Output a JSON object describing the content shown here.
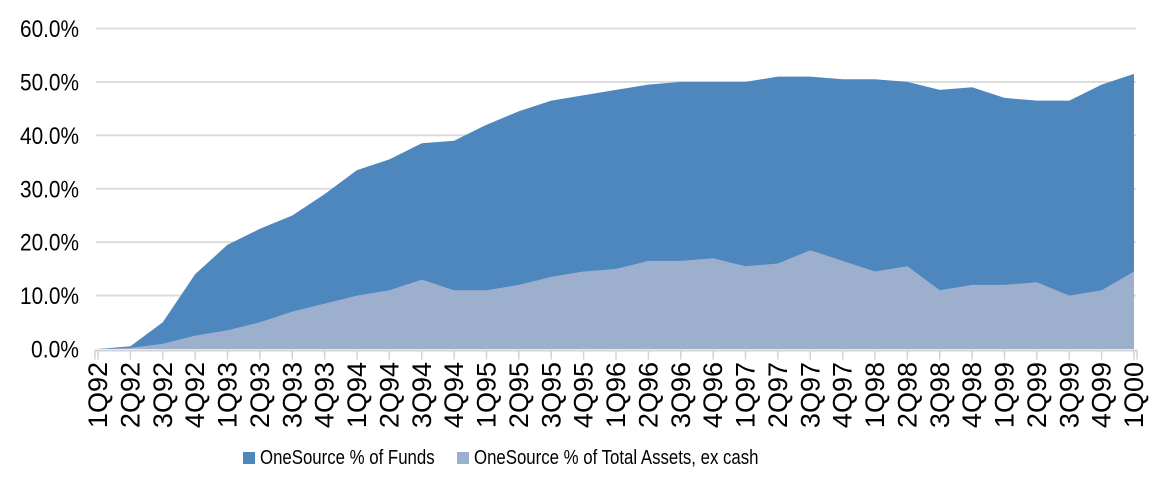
{
  "chart_data": {
    "type": "area",
    "title": "",
    "categories": [
      "1Q92",
      "2Q92",
      "3Q92",
      "4Q92",
      "1Q93",
      "2Q93",
      "3Q93",
      "4Q93",
      "1Q94",
      "2Q94",
      "3Q94",
      "4Q94",
      "1Q95",
      "2Q95",
      "3Q95",
      "4Q95",
      "1Q96",
      "2Q96",
      "3Q96",
      "4Q96",
      "1Q97",
      "2Q97",
      "3Q97",
      "4Q97",
      "1Q98",
      "2Q98",
      "3Q98",
      "4Q98",
      "1Q99",
      "2Q99",
      "3Q99",
      "4Q99",
      "1Q00"
    ],
    "series": [
      {
        "name": "OneSource % of Funds",
        "color": "#4E86BE",
        "values": [
          0,
          0.5,
          5,
          14,
          19.5,
          22.5,
          25,
          29,
          33.5,
          35.5,
          38.5,
          39,
          42,
          44.5,
          46.5,
          47.5,
          48.5,
          49.5,
          50,
          50,
          50,
          51,
          51,
          50.5,
          50.5,
          50,
          48.5,
          49,
          47,
          46.5,
          46.5,
          49.5,
          51.5
        ]
      },
      {
        "name": "OneSource % of Total Assets, ex cash",
        "color": "#9CB0CD",
        "values": [
          0,
          0.2,
          1,
          2.5,
          3.5,
          5,
          7,
          8.5,
          10,
          11,
          13,
          11,
          11,
          12,
          13.5,
          14.5,
          15,
          16.5,
          16.5,
          17,
          15.5,
          16,
          18.5,
          16.5,
          14.5,
          15.5,
          11,
          12,
          12,
          12.5,
          10,
          11,
          14.5
        ]
      }
    ],
    "y_axis": {
      "min": 0,
      "max": 60,
      "step": 10,
      "tick_labels": [
        "0.0%",
        "10.0%",
        "20.0%",
        "30.0%",
        "40.0%",
        "50.0%",
        "60.0%"
      ]
    },
    "x_axis": {
      "label_rotation": -90
    },
    "grid": true,
    "legend_position": "bottom",
    "gridline_color": "#DADADA",
    "axis_color": "#D3D3D3",
    "text_color": "#000000",
    "background_color": "#FFFFFF"
  }
}
